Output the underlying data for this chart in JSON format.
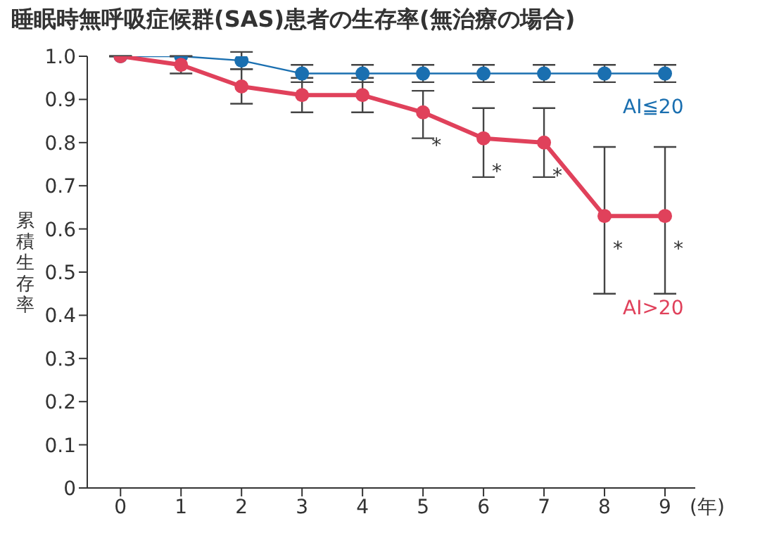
{
  "chart_data": {
    "type": "line",
    "title": "睡眠時無呼吸症候群(SAS)患者の生存率(無治療の場合)",
    "ylabel": "累積生存率",
    "xlabel": "(年)",
    "x": [
      0,
      1,
      2,
      3,
      4,
      5,
      6,
      7,
      8,
      9
    ],
    "series": [
      {
        "name": "AI≦20",
        "color": "#1a6fb0",
        "values": [
          1.0,
          1.0,
          0.99,
          0.96,
          0.96,
          0.96,
          0.96,
          0.96,
          0.96,
          0.96
        ],
        "errors": [
          null,
          null,
          0.02,
          0.02,
          0.02,
          0.02,
          0.02,
          0.02,
          0.02,
          0.02
        ]
      },
      {
        "name": "AI>20",
        "color": "#e0415b",
        "values": [
          1.0,
          0.98,
          0.93,
          0.91,
          0.91,
          0.87,
          0.81,
          0.8,
          0.63,
          0.63
        ],
        "errors": [
          null,
          [
            0.96,
            1.0
          ],
          [
            0.89,
            0.97
          ],
          [
            0.87,
            0.95
          ],
          [
            0.87,
            0.95
          ],
          [
            0.81,
            0.92
          ],
          [
            0.72,
            0.88
          ],
          [
            0.72,
            0.88
          ],
          [
            0.45,
            0.79
          ],
          [
            0.45,
            0.79
          ]
        ]
      }
    ],
    "annotations": [
      {
        "text": "*",
        "x": 5,
        "y": 0.87
      },
      {
        "text": "*",
        "x": 6,
        "y": 0.81
      },
      {
        "text": "*",
        "x": 7,
        "y": 0.8
      },
      {
        "text": "*",
        "x": 8,
        "y": 0.63
      },
      {
        "text": "*",
        "x": 9,
        "y": 0.63
      }
    ],
    "xlim": [
      -0.55,
      9.5
    ],
    "xticks": [
      0,
      1,
      2,
      3,
      4,
      5,
      6,
      7,
      8,
      9
    ],
    "ylim": [
      0,
      1.0
    ],
    "yticks": [
      0,
      0.1,
      0.2,
      0.3,
      0.4,
      0.5,
      0.6,
      0.7,
      0.8,
      0.9,
      {
        "value": 1.0,
        "label": "1.0"
      }
    ],
    "grid": false,
    "marker": "circle",
    "line_style": "solid"
  }
}
